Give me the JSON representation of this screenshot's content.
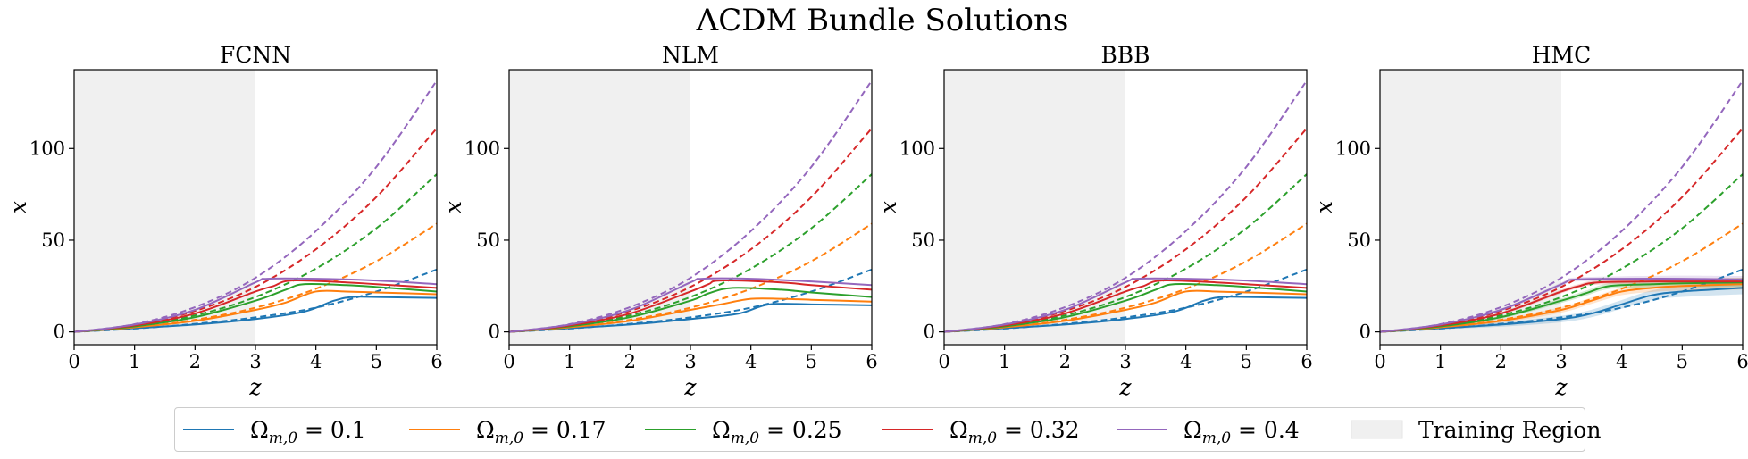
{
  "figure": {
    "suptitle": "ΛCDM Bundle Solutions"
  },
  "legend": {
    "training_label": "Training Region"
  },
  "colors": {
    "series": [
      "#1f77b4",
      "#ff7f0e",
      "#2ca02c",
      "#d62728",
      "#9467bd"
    ],
    "training_region": "#f0f0f0"
  },
  "chart_data": [
    {
      "type": "line",
      "title": "FCNN",
      "xlabel": "z",
      "ylabel": "x",
      "xlim": [
        0,
        6
      ],
      "ylim": [
        -7,
        143
      ],
      "xticks": [
        0,
        1,
        2,
        3,
        4,
        5,
        6
      ],
      "yticks": [
        0,
        50,
        100
      ],
      "grid": false,
      "training_region": [
        0,
        3
      ],
      "series": [
        {
          "name": "Ω_{m,0} = 0.1",
          "omega": "0.1",
          "style": "solid",
          "x": [
            0,
            1,
            2,
            3,
            3.8,
            4.3,
            4.6,
            5,
            6
          ],
          "y": [
            0,
            2,
            4,
            7,
            11,
            17,
            19,
            19,
            18.5
          ]
        },
        {
          "name": "Ω_{m,0} = 0.17",
          "omega": "0.17",
          "style": "solid",
          "x": [
            0,
            1,
            2,
            3,
            3.5,
            4,
            4.5,
            5,
            6
          ],
          "y": [
            0,
            2.5,
            6,
            12,
            16,
            22,
            22,
            21.5,
            20.5
          ]
        },
        {
          "name": "Ω_{m,0} = 0.25",
          "omega": "0.25",
          "style": "solid",
          "x": [
            0,
            1,
            2,
            3,
            3.5,
            3.8,
            4.5,
            5,
            6
          ],
          "y": [
            0,
            3,
            8,
            17,
            23,
            26,
            25.5,
            24.5,
            22
          ]
        },
        {
          "name": "Ω_{m,0} = 0.32",
          "omega": "0.32",
          "style": "solid",
          "x": [
            0,
            1,
            2,
            3,
            3.3,
            3.6,
            4.5,
            5,
            6
          ],
          "y": [
            0,
            3.5,
            10,
            22,
            25,
            28,
            27,
            26,
            24
          ]
        },
        {
          "name": "Ω_{m,0} = 0.4",
          "omega": "0.4",
          "style": "solid",
          "x": [
            0,
            1,
            2,
            3,
            3.2,
            4,
            5,
            6
          ],
          "y": [
            0,
            4,
            12,
            27,
            29,
            29,
            28,
            26
          ]
        },
        {
          "name": "",
          "omega": "0.1",
          "style": "dashed",
          "x": [
            0,
            1,
            2,
            3,
            4,
            5,
            6
          ],
          "y": [
            0,
            1.8,
            4.4,
            7.9,
            13.2,
            22,
            34
          ]
        },
        {
          "name": "",
          "omega": "0.17",
          "style": "dashed",
          "x": [
            0,
            1,
            2,
            3,
            4,
            5,
            6
          ],
          "y": [
            0,
            2.4,
            6.6,
            13.2,
            23.5,
            38.5,
            59
          ]
        },
        {
          "name": "",
          "omega": "0.25",
          "style": "dashed",
          "x": [
            0,
            1,
            2,
            3,
            4,
            5,
            6
          ],
          "y": [
            0,
            3,
            9,
            19,
            34.5,
            56.5,
            86
          ]
        },
        {
          "name": "",
          "omega": "0.32",
          "style": "dashed",
          "x": [
            0,
            1,
            2,
            3,
            4,
            5,
            6
          ],
          "y": [
            0,
            3.6,
            11.4,
            24.5,
            45,
            73.5,
            111
          ]
        },
        {
          "name": "",
          "omega": "0.4",
          "style": "dashed",
          "x": [
            0,
            1,
            2,
            3,
            4,
            5,
            6
          ],
          "y": [
            0,
            4.2,
            13.5,
            29.5,
            55,
            90,
            137
          ]
        }
      ]
    },
    {
      "type": "line",
      "title": "NLM",
      "xlabel": "z",
      "ylabel": "x",
      "xlim": [
        0,
        6
      ],
      "ylim": [
        -7,
        143
      ],
      "xticks": [
        0,
        1,
        2,
        3,
        4,
        5,
        6
      ],
      "yticks": [
        0,
        50,
        100
      ],
      "grid": false,
      "training_region": [
        0,
        3
      ],
      "series": [
        {
          "name": "Ω_{m,0} = 0.1",
          "omega": "0.1",
          "style": "solid",
          "x": [
            0,
            1,
            2,
            3,
            3.8,
            4.3,
            5,
            6
          ],
          "y": [
            0,
            2,
            4,
            7,
            10,
            15,
            15,
            14.5
          ]
        },
        {
          "name": "Ω_{m,0} = 0.17",
          "omega": "0.17",
          "style": "solid",
          "x": [
            0,
            1,
            2,
            3,
            3.5,
            4,
            4.5,
            5,
            6
          ],
          "y": [
            0,
            2.5,
            6,
            12,
            15,
            18,
            18,
            17.5,
            16.5
          ]
        },
        {
          "name": "Ω_{m,0} = 0.25",
          "omega": "0.25",
          "style": "solid",
          "x": [
            0,
            1,
            2,
            3,
            3.3,
            3.7,
            4.5,
            5,
            6
          ],
          "y": [
            0,
            3,
            8,
            17,
            21,
            24,
            23,
            21.5,
            19
          ]
        },
        {
          "name": "Ω_{m,0} = 0.32",
          "omega": "0.32",
          "style": "solid",
          "x": [
            0,
            1,
            2,
            3,
            3.3,
            3.5,
            4.5,
            5,
            6
          ],
          "y": [
            0,
            3.5,
            10,
            22,
            26,
            28,
            27,
            25.5,
            23
          ]
        },
        {
          "name": "Ω_{m,0} = 0.4",
          "omega": "0.4",
          "style": "solid",
          "x": [
            0,
            1,
            2,
            3,
            3.2,
            4,
            5,
            6
          ],
          "y": [
            0,
            4,
            12,
            27,
            29,
            29,
            27.5,
            25.5
          ]
        },
        {
          "name": "",
          "omega": "0.1",
          "style": "dashed",
          "x": [
            0,
            1,
            2,
            3,
            4,
            5,
            6
          ],
          "y": [
            0,
            1.8,
            4.4,
            7.9,
            13.2,
            22,
            34
          ]
        },
        {
          "name": "",
          "omega": "0.17",
          "style": "dashed",
          "x": [
            0,
            1,
            2,
            3,
            4,
            5,
            6
          ],
          "y": [
            0,
            2.4,
            6.6,
            13.2,
            23.5,
            38.5,
            59
          ]
        },
        {
          "name": "",
          "omega": "0.25",
          "style": "dashed",
          "x": [
            0,
            1,
            2,
            3,
            4,
            5,
            6
          ],
          "y": [
            0,
            3,
            9,
            19,
            34.5,
            56.5,
            86
          ]
        },
        {
          "name": "",
          "omega": "0.32",
          "style": "dashed",
          "x": [
            0,
            1,
            2,
            3,
            4,
            5,
            6
          ],
          "y": [
            0,
            3.6,
            11.4,
            24.5,
            45,
            73.5,
            111
          ]
        },
        {
          "name": "",
          "omega": "0.4",
          "style": "dashed",
          "x": [
            0,
            1,
            2,
            3,
            4,
            5,
            6
          ],
          "y": [
            0,
            4.2,
            13.5,
            29.5,
            55,
            90,
            137
          ]
        }
      ]
    },
    {
      "type": "line",
      "title": "BBB",
      "xlabel": "z",
      "ylabel": "x",
      "xlim": [
        0,
        6
      ],
      "ylim": [
        -7,
        143
      ],
      "xticks": [
        0,
        1,
        2,
        3,
        4,
        5,
        6
      ],
      "yticks": [
        0,
        50,
        100
      ],
      "grid": false,
      "training_region": [
        0,
        3
      ],
      "series": [
        {
          "name": "Ω_{m,0} = 0.1",
          "omega": "0.1",
          "style": "solid",
          "x": [
            0,
            1,
            2,
            3,
            3.8,
            4.3,
            4.6,
            5,
            6
          ],
          "y": [
            0,
            2,
            4,
            7,
            11,
            17,
            19,
            19,
            18.5
          ]
        },
        {
          "name": "Ω_{m,0} = 0.17",
          "omega": "0.17",
          "style": "solid",
          "x": [
            0,
            1,
            2,
            3,
            3.5,
            4,
            4.5,
            5,
            6
          ],
          "y": [
            0,
            2.5,
            6,
            12,
            16,
            22,
            22,
            21.5,
            20.5
          ]
        },
        {
          "name": "Ω_{m,0} = 0.25",
          "omega": "0.25",
          "style": "solid",
          "x": [
            0,
            1,
            2,
            3,
            3.5,
            3.8,
            4.5,
            5,
            6
          ],
          "y": [
            0,
            3,
            8,
            17,
            23,
            26,
            25.5,
            24.5,
            22
          ]
        },
        {
          "name": "Ω_{m,0} = 0.32",
          "omega": "0.32",
          "style": "solid",
          "x": [
            0,
            1,
            2,
            3,
            3.3,
            3.6,
            4.5,
            5,
            6
          ],
          "y": [
            0,
            3.5,
            10,
            22,
            25,
            28,
            27,
            26,
            24
          ]
        },
        {
          "name": "Ω_{m,0} = 0.4",
          "omega": "0.4",
          "style": "solid",
          "x": [
            0,
            1,
            2,
            3,
            3.2,
            4,
            5,
            6
          ],
          "y": [
            0,
            4,
            12,
            27,
            29,
            29,
            28,
            26
          ]
        },
        {
          "name": "",
          "omega": "0.1",
          "style": "dashed",
          "x": [
            0,
            1,
            2,
            3,
            4,
            5,
            6
          ],
          "y": [
            0,
            1.8,
            4.4,
            7.9,
            13.2,
            22,
            34
          ]
        },
        {
          "name": "",
          "omega": "0.17",
          "style": "dashed",
          "x": [
            0,
            1,
            2,
            3,
            4,
            5,
            6
          ],
          "y": [
            0,
            2.4,
            6.6,
            13.2,
            23.5,
            38.5,
            59
          ]
        },
        {
          "name": "",
          "omega": "0.25",
          "style": "dashed",
          "x": [
            0,
            1,
            2,
            3,
            4,
            5,
            6
          ],
          "y": [
            0,
            3,
            9,
            19,
            34.5,
            56.5,
            86
          ]
        },
        {
          "name": "",
          "omega": "0.32",
          "style": "dashed",
          "x": [
            0,
            1,
            2,
            3,
            4,
            5,
            6
          ],
          "y": [
            0,
            3.6,
            11.4,
            24.5,
            45,
            73.5,
            111
          ]
        },
        {
          "name": "",
          "omega": "0.4",
          "style": "dashed",
          "x": [
            0,
            1,
            2,
            3,
            4,
            5,
            6
          ],
          "y": [
            0,
            4.2,
            13.5,
            29.5,
            55,
            90,
            137
          ]
        }
      ]
    },
    {
      "type": "line",
      "title": "HMC",
      "xlabel": "z",
      "ylabel": "x",
      "xlim": [
        0,
        6
      ],
      "ylim": [
        -7,
        143
      ],
      "xticks": [
        0,
        1,
        2,
        3,
        4,
        5,
        6
      ],
      "yticks": [
        0,
        50,
        100
      ],
      "grid": false,
      "training_region": [
        0,
        3
      ],
      "series": [
        {
          "name": "Ω_{m,0} = 0.1",
          "omega": "0.1",
          "style": "solid",
          "band": 3.5,
          "x": [
            0,
            1,
            2,
            3,
            3.5,
            4,
            4.5,
            5,
            6
          ],
          "y": [
            0,
            2,
            4,
            7,
            10,
            15,
            20,
            22,
            24
          ]
        },
        {
          "name": "Ω_{m,0} = 0.17",
          "omega": "0.17",
          "style": "solid",
          "band": 3,
          "x": [
            0,
            1,
            2,
            3,
            3.5,
            4,
            4.5,
            5,
            6
          ],
          "y": [
            0,
            2.5,
            6,
            12,
            17,
            22,
            24,
            25,
            26
          ]
        },
        {
          "name": "Ω_{m,0} = 0.25",
          "omega": "0.25",
          "style": "solid",
          "band": 2.5,
          "x": [
            0,
            1,
            2,
            3,
            3.4,
            3.8,
            4.5,
            5,
            6
          ],
          "y": [
            0,
            3,
            8,
            17,
            21,
            25,
            26,
            26.5,
            27
          ]
        },
        {
          "name": "Ω_{m,0} = 0.32",
          "omega": "0.32",
          "style": "solid",
          "band": 2,
          "x": [
            0,
            1,
            2,
            3,
            3.3,
            3.6,
            4.5,
            5,
            6
          ],
          "y": [
            0,
            3.5,
            10,
            22,
            25,
            27,
            27.5,
            27.5,
            27.5
          ]
        },
        {
          "name": "Ω_{m,0} = 0.4",
          "omega": "0.4",
          "style": "solid",
          "band": 2,
          "x": [
            0,
            1,
            2,
            3,
            3.2,
            4,
            5,
            6
          ],
          "y": [
            0,
            4,
            12,
            26,
            28.5,
            29,
            29,
            28.5
          ]
        },
        {
          "name": "",
          "omega": "0.1",
          "style": "dashed",
          "x": [
            0,
            1,
            2,
            3,
            4,
            5,
            6
          ],
          "y": [
            0,
            1.8,
            4.4,
            7.9,
            13.2,
            22,
            34
          ]
        },
        {
          "name": "",
          "omega": "0.17",
          "style": "dashed",
          "x": [
            0,
            1,
            2,
            3,
            4,
            5,
            6
          ],
          "y": [
            0,
            2.4,
            6.6,
            13.2,
            23.5,
            38.5,
            59
          ]
        },
        {
          "name": "",
          "omega": "0.25",
          "style": "dashed",
          "x": [
            0,
            1,
            2,
            3,
            4,
            5,
            6
          ],
          "y": [
            0,
            3,
            9,
            19,
            34.5,
            56.5,
            86
          ]
        },
        {
          "name": "",
          "omega": "0.32",
          "style": "dashed",
          "x": [
            0,
            1,
            2,
            3,
            4,
            5,
            6
          ],
          "y": [
            0,
            3.6,
            11.4,
            24.5,
            45,
            73.5,
            111
          ]
        },
        {
          "name": "",
          "omega": "0.4",
          "style": "dashed",
          "x": [
            0,
            1,
            2,
            3,
            4,
            5,
            6
          ],
          "y": [
            0,
            4.2,
            13.5,
            29.5,
            55,
            90,
            137
          ]
        }
      ]
    }
  ]
}
